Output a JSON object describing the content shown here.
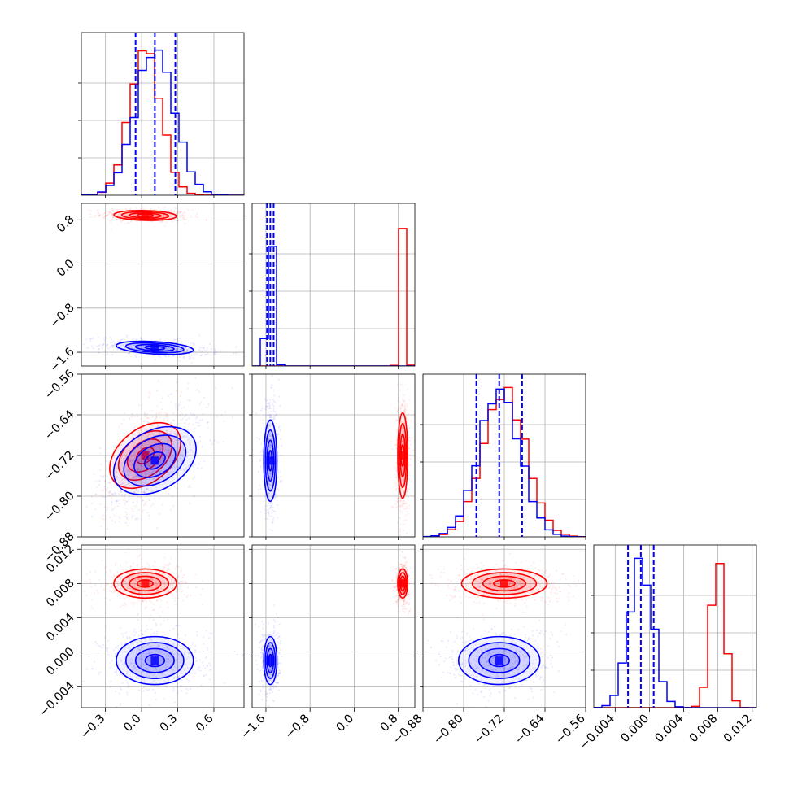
{
  "colors": {
    "series_a": "#ff0000",
    "series_b": "#0000ff",
    "grid": "#b0b0b0"
  },
  "chart_data": {
    "type": "corner",
    "grid": true,
    "parameters": [
      {
        "range": [
          -0.5,
          0.85
        ],
        "ticks": [
          -0.3,
          0.0,
          0.3,
          0.6
        ],
        "tick_labels": [
          "−0.3",
          "0.0",
          "0.3",
          "0.6"
        ]
      },
      {
        "range": [
          -1.85,
          1.1
        ],
        "ticks": [
          -1.6,
          -0.8,
          0.0,
          0.8
        ],
        "tick_labels": [
          "−1.6",
          "−0.8",
          "0.0",
          "0.8"
        ]
      },
      {
        "range": [
          -0.88,
          -0.56
        ],
        "ticks": [
          -0.88,
          -0.8,
          -0.72,
          -0.64,
          -0.56
        ],
        "tick_labels": [
          "−0.88",
          "−0.80",
          "−0.72",
          "−0.64",
          "−0.56"
        ]
      },
      {
        "range": [
          -0.0065,
          0.0125
        ],
        "ticks": [
          -0.004,
          0.0,
          0.004,
          0.008,
          0.012
        ],
        "tick_labels": [
          "−0.004",
          "0.000",
          "0.004",
          "0.008",
          "0.012"
        ]
      }
    ],
    "series": [
      {
        "color": "series_a",
        "mean": [
          0.03,
          0.88,
          -0.72,
          0.008
        ],
        "std": [
          0.13,
          0.045,
          0.042,
          0.00085
        ],
        "corr_01": -0.15,
        "corr_02": 0.6
      },
      {
        "color": "series_b",
        "mean": [
          0.11,
          -1.52,
          -0.73,
          -0.001
        ],
        "std": [
          0.16,
          0.06,
          0.04,
          0.0014
        ],
        "corr_01": -0.35,
        "corr_02": 0.55
      }
    ],
    "quantile_lines": {
      "color": "series_b",
      "values": [
        [
          -0.05,
          0.11,
          0.28
        ],
        [
          -1.58,
          -1.52,
          -1.46
        ],
        [
          -0.775,
          -0.73,
          -0.685
        ],
        [
          -0.0025,
          -0.001,
          0.0005
        ]
      ]
    }
  }
}
